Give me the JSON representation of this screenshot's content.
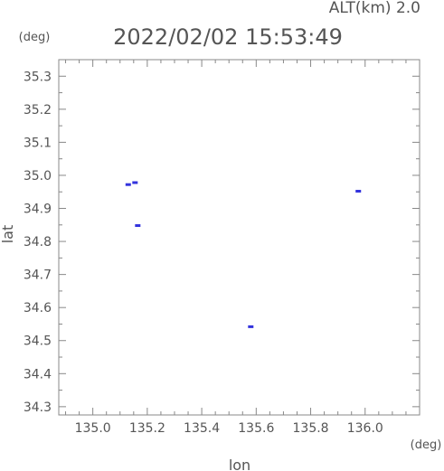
{
  "header": {
    "alt_label": "ALT(km) 2.0",
    "timestamp": "2022/02/02 15:53:49",
    "y_unit": "(deg)",
    "x_unit": "(deg)"
  },
  "chart_data": {
    "type": "scatter",
    "title": "2022/02/02 15:53:49",
    "subtitle": "ALT(km) 2.0",
    "xlabel": "lon",
    "ylabel": "lat",
    "xlim": [
      134.875,
      136.2
    ],
    "ylim": [
      34.275,
      35.35
    ],
    "xticks": [
      "135.0",
      "135.2",
      "135.4",
      "135.6",
      "135.8",
      "136.0"
    ],
    "xtick_values": [
      135.0,
      135.2,
      135.4,
      135.6,
      135.8,
      136.0
    ],
    "yticks": [
      "34.3",
      "34.4",
      "34.5",
      "34.6",
      "34.7",
      "34.8",
      "34.9",
      "35.0",
      "35.1",
      "35.2",
      "35.3"
    ],
    "ytick_values": [
      34.3,
      34.4,
      34.5,
      34.6,
      34.7,
      34.8,
      34.9,
      35.0,
      35.1,
      35.2,
      35.3
    ],
    "grid": false,
    "point_color": "#3333dd",
    "points": [
      {
        "x": 135.13,
        "y": 34.972
      },
      {
        "x": 135.155,
        "y": 34.978
      },
      {
        "x": 135.165,
        "y": 34.848
      },
      {
        "x": 135.58,
        "y": 34.542
      },
      {
        "x": 135.975,
        "y": 34.952
      }
    ]
  }
}
